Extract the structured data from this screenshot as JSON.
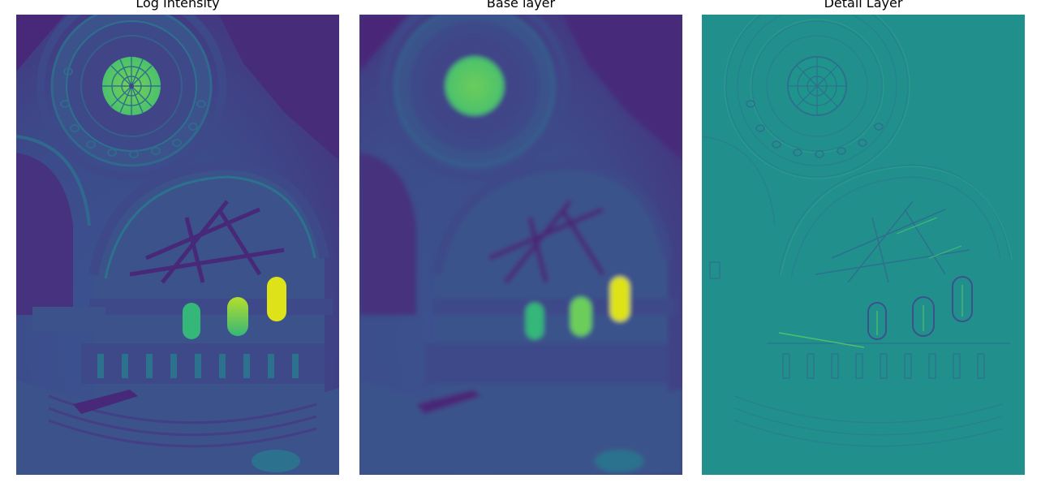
{
  "figure": {
    "panels": [
      {
        "title": "Log Intensity",
        "image": "log-intensity-image",
        "style": "log"
      },
      {
        "title": "Base layer",
        "image": "base-layer-image",
        "style": "base"
      },
      {
        "title": "Detail Layer",
        "image": "detail-layer-image",
        "style": "detail"
      }
    ]
  },
  "colors": {
    "viridis_dark": "#440154",
    "viridis_purple": "#46327e",
    "viridis_blue": "#365c8d",
    "viridis_teal": "#277f8e",
    "viridis_green": "#1fa187",
    "viridis_lightgreen": "#4ac16d",
    "viridis_lime": "#a0da39",
    "viridis_yellow": "#fde725",
    "detail_background": "#21908d"
  }
}
